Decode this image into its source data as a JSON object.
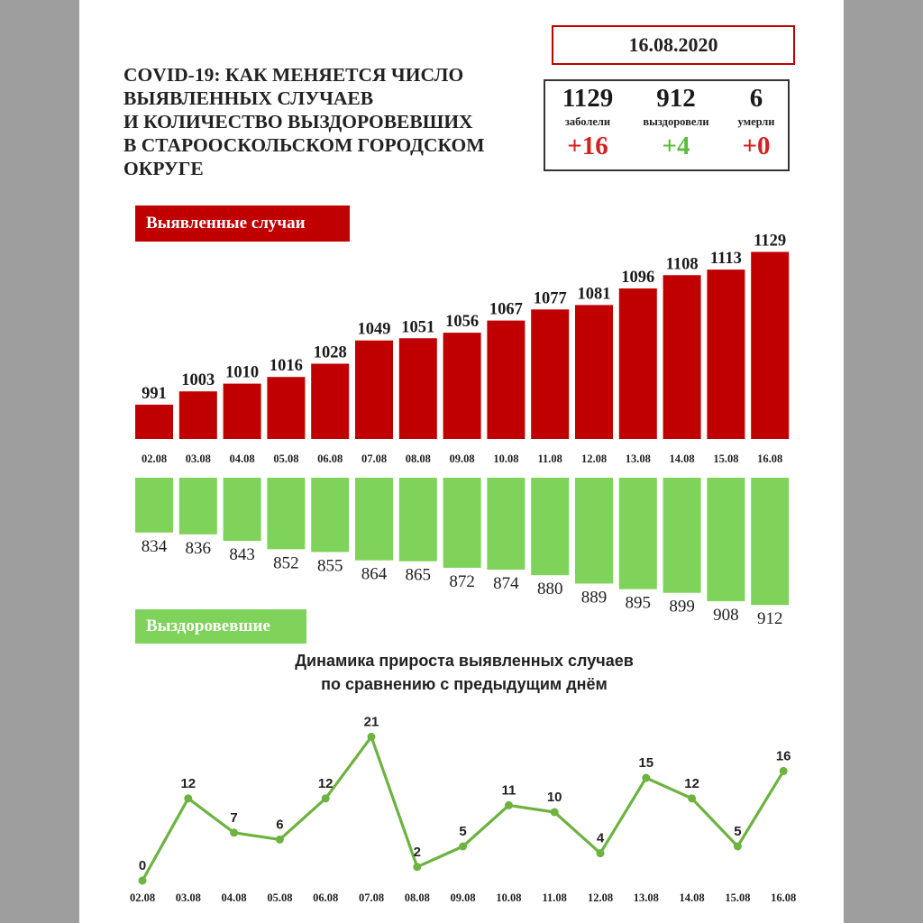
{
  "title_lines": [
    "COVID-19: КАК МЕНЯЕТСЯ ЧИСЛО",
    "ВЫЯВЛЕННЫХ СЛУЧАЕВ",
    "И КОЛИЧЕСТВО ВЫЗДОРОВЕВШИХ",
    "В СТАРООСКОЛЬСКОМ ГОРОДСКОМ",
    "ОКРУГЕ"
  ],
  "date": "16.08.2020",
  "stats": [
    {
      "value": "1129",
      "label": "заболели",
      "delta": "+16",
      "color": "#d42020"
    },
    {
      "value": "912",
      "label": "выздоровели",
      "delta": "+4",
      "color": "#5dbb3a"
    },
    {
      "value": "6",
      "label": "умерли",
      "delta": "+0",
      "color": "#d42020"
    }
  ],
  "colors": {
    "cases": "#c00000",
    "recovered": "#7fd35a",
    "line": "#6cb33f"
  },
  "chart_data": [
    {
      "type": "bar",
      "title": "Выявленные случаи",
      "categories": [
        "02.08",
        "03.08",
        "04.08",
        "05.08",
        "06.08",
        "07.08",
        "08.08",
        "09.08",
        "10.08",
        "11.08",
        "12.08",
        "13.08",
        "14.08",
        "15.08",
        "16.08"
      ],
      "values": [
        991,
        1003,
        1010,
        1016,
        1028,
        1049,
        1051,
        1056,
        1067,
        1077,
        1081,
        1096,
        1108,
        1113,
        1129
      ]
    },
    {
      "type": "bar",
      "title": "Выздоровевшие",
      "categories": [
        "02.08",
        "03.08",
        "04.08",
        "05.08",
        "06.08",
        "07.08",
        "08.08",
        "09.08",
        "10.08",
        "11.08",
        "12.08",
        "13.08",
        "14.08",
        "15.08",
        "16.08"
      ],
      "values": [
        834,
        836,
        843,
        852,
        855,
        864,
        865,
        872,
        874,
        880,
        889,
        895,
        899,
        908,
        912
      ]
    },
    {
      "type": "line",
      "title": "Динамика прироста выявленных случаев по сравнению с предыдущим днём",
      "title_lines": [
        "Динамика прироста выявленных случаев",
        "по сравнению с предыдущим днём"
      ],
      "categories": [
        "02.08",
        "03.08",
        "04.08",
        "05.08",
        "06.08",
        "07.08",
        "08.08",
        "09.08",
        "10.08",
        "11.08",
        "12.08",
        "13.08",
        "14.08",
        "15.08",
        "16.08"
      ],
      "values": [
        0,
        12,
        7,
        6,
        12,
        21,
        2,
        5,
        11,
        10,
        4,
        15,
        12,
        5,
        16
      ]
    }
  ]
}
